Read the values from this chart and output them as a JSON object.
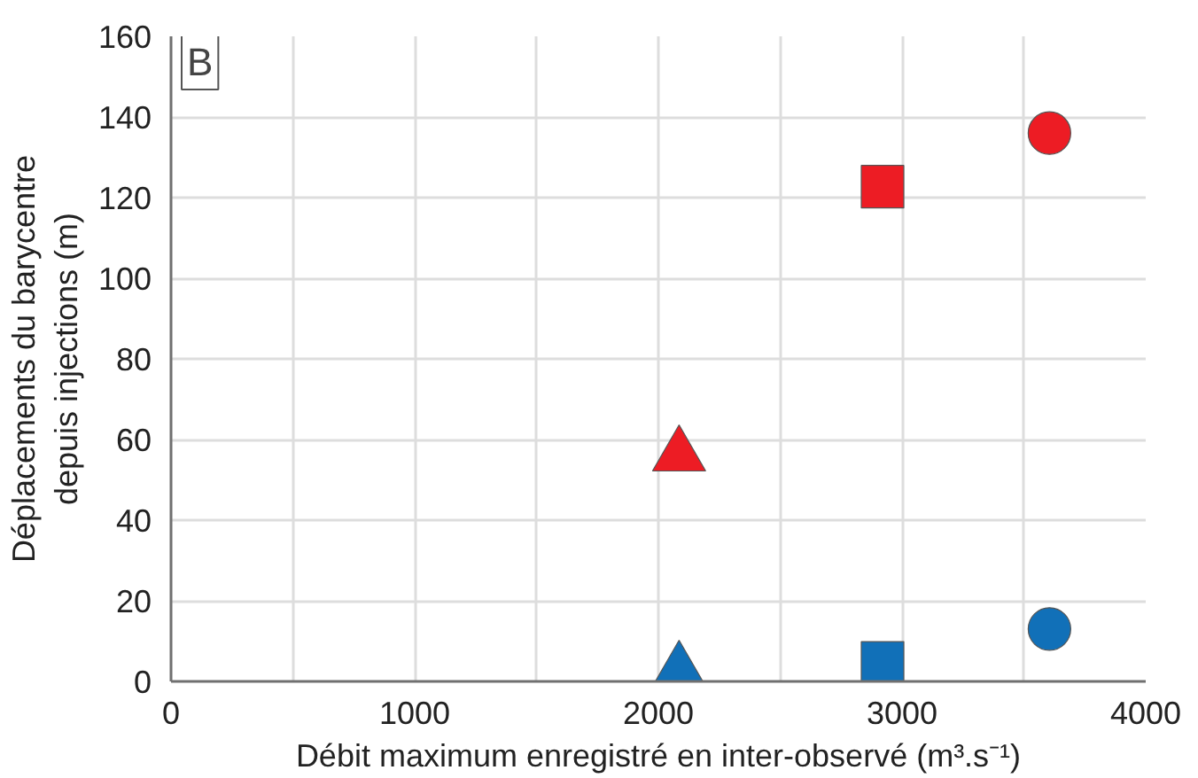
{
  "chart_data": {
    "type": "scatter",
    "xlabel": "Débit maximum enregistré en inter-observé (m³.s⁻¹)",
    "ylabel": "Déplacements du barycentre\ndepuis injections (m)",
    "annotations": [
      "B"
    ],
    "series": [
      {
        "marker": "circle",
        "x": [
          3605,
          3605
        ],
        "values": [
          136,
          13
        ],
        "colors": [
          "#ed1c24",
          "#1170b8"
        ]
      },
      {
        "marker": "square",
        "x": [
          2920,
          2920
        ],
        "values": [
          122.7,
          4.6
        ],
        "colors": [
          "#ed1c24",
          "#1170b8"
        ]
      },
      {
        "marker": "triangle",
        "x": [
          2085,
          2085
        ],
        "values": [
          56,
          2.6
        ],
        "colors": [
          "#ed1c24",
          "#1170b8"
        ]
      }
    ],
    "xlim": [
      0,
      4000
    ],
    "xticks": [
      0,
      {
        "value": 500,
        "label": null
      },
      1000,
      {
        "value": 1500,
        "label": null
      },
      2000,
      {
        "value": 2500,
        "label": null
      },
      3000,
      {
        "value": 3500,
        "label": null
      },
      4000
    ],
    "ylim": [
      0,
      160
    ],
    "yticks": [
      0,
      20,
      40,
      60,
      80,
      100,
      120,
      140,
      160
    ],
    "grid": true
  }
}
